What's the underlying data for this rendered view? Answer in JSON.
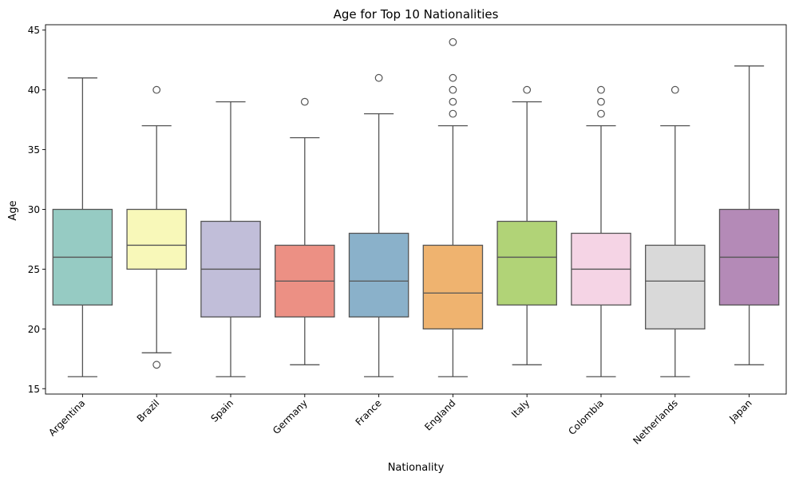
{
  "chart_data": {
    "type": "box",
    "title": "Age for Top 10 Nationalities",
    "xlabel": "Nationality",
    "ylabel": "Age",
    "ylim": [
      14.55,
      45.45
    ],
    "yticks": [
      15,
      20,
      25,
      30,
      35,
      40,
      45
    ],
    "categories": [
      "Argentina",
      "Brazil",
      "Spain",
      "Germany",
      "France",
      "England",
      "Italy",
      "Colombia",
      "Netherlands",
      "Japan"
    ],
    "colors": [
      "#96cbc3",
      "#f8f8b9",
      "#c1bed9",
      "#ec9084",
      "#8ab1ca",
      "#efb36f",
      "#b1d377",
      "#f5d4e5",
      "#d9d9d9",
      "#b48ab7"
    ],
    "boxes": [
      {
        "whisker_low": 16,
        "q1": 22,
        "median": 26,
        "q3": 30,
        "whisker_high": 41,
        "outliers": []
      },
      {
        "whisker_low": 18,
        "q1": 25,
        "median": 27,
        "q3": 30,
        "whisker_high": 37,
        "outliers": [
          40,
          17
        ]
      },
      {
        "whisker_low": 16,
        "q1": 21,
        "median": 25,
        "q3": 29,
        "whisker_high": 39,
        "outliers": []
      },
      {
        "whisker_low": 17,
        "q1": 21,
        "median": 24,
        "q3": 27,
        "whisker_high": 36,
        "outliers": [
          39
        ]
      },
      {
        "whisker_low": 16,
        "q1": 21,
        "median": 24,
        "q3": 28,
        "whisker_high": 38,
        "outliers": [
          41
        ]
      },
      {
        "whisker_low": 16,
        "q1": 20,
        "median": 23,
        "q3": 27,
        "whisker_high": 37,
        "outliers": [
          38,
          39,
          40,
          41,
          44
        ]
      },
      {
        "whisker_low": 17,
        "q1": 22,
        "median": 26,
        "q3": 29,
        "whisker_high": 39,
        "outliers": [
          40
        ]
      },
      {
        "whisker_low": 16,
        "q1": 22,
        "median": 25,
        "q3": 28,
        "whisker_high": 37,
        "outliers": [
          38,
          39,
          40
        ]
      },
      {
        "whisker_low": 16,
        "q1": 20,
        "median": 24,
        "q3": 27,
        "whisker_high": 37,
        "outliers": [
          40
        ]
      },
      {
        "whisker_low": 17,
        "q1": 22,
        "median": 26,
        "q3": 30,
        "whisker_high": 42,
        "outliers": []
      }
    ],
    "grid": false,
    "legend": "none"
  }
}
